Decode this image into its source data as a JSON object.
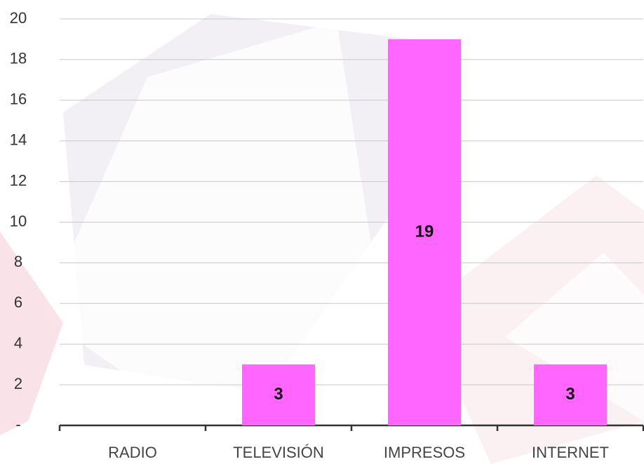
{
  "chart_data": {
    "type": "bar",
    "categories": [
      "RADIO",
      "TELEVISIÓN",
      "IMPRESOS",
      "INTERNET"
    ],
    "values": [
      0,
      3,
      19,
      3
    ],
    "color": "#ff66ff",
    "ylim": [
      0,
      20
    ],
    "yticks": [
      {
        "value": 0,
        "label": "-"
      },
      2,
      4,
      6,
      8,
      10,
      12,
      14,
      16,
      18,
      20
    ],
    "grid": true
  }
}
